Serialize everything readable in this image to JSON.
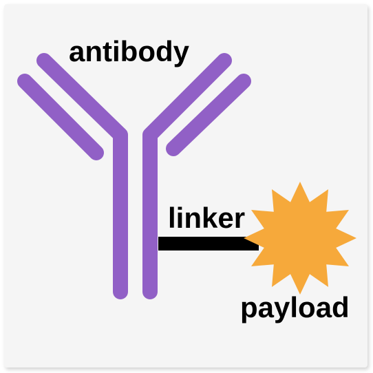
{
  "labels": {
    "antibody": "antibody",
    "linker": "linker",
    "payload": "payload"
  },
  "colors": {
    "background": "#f5f5f5",
    "antibody": "#9160c6",
    "linker": "#000000",
    "payload": "#f6a93b",
    "text": "#000000"
  }
}
